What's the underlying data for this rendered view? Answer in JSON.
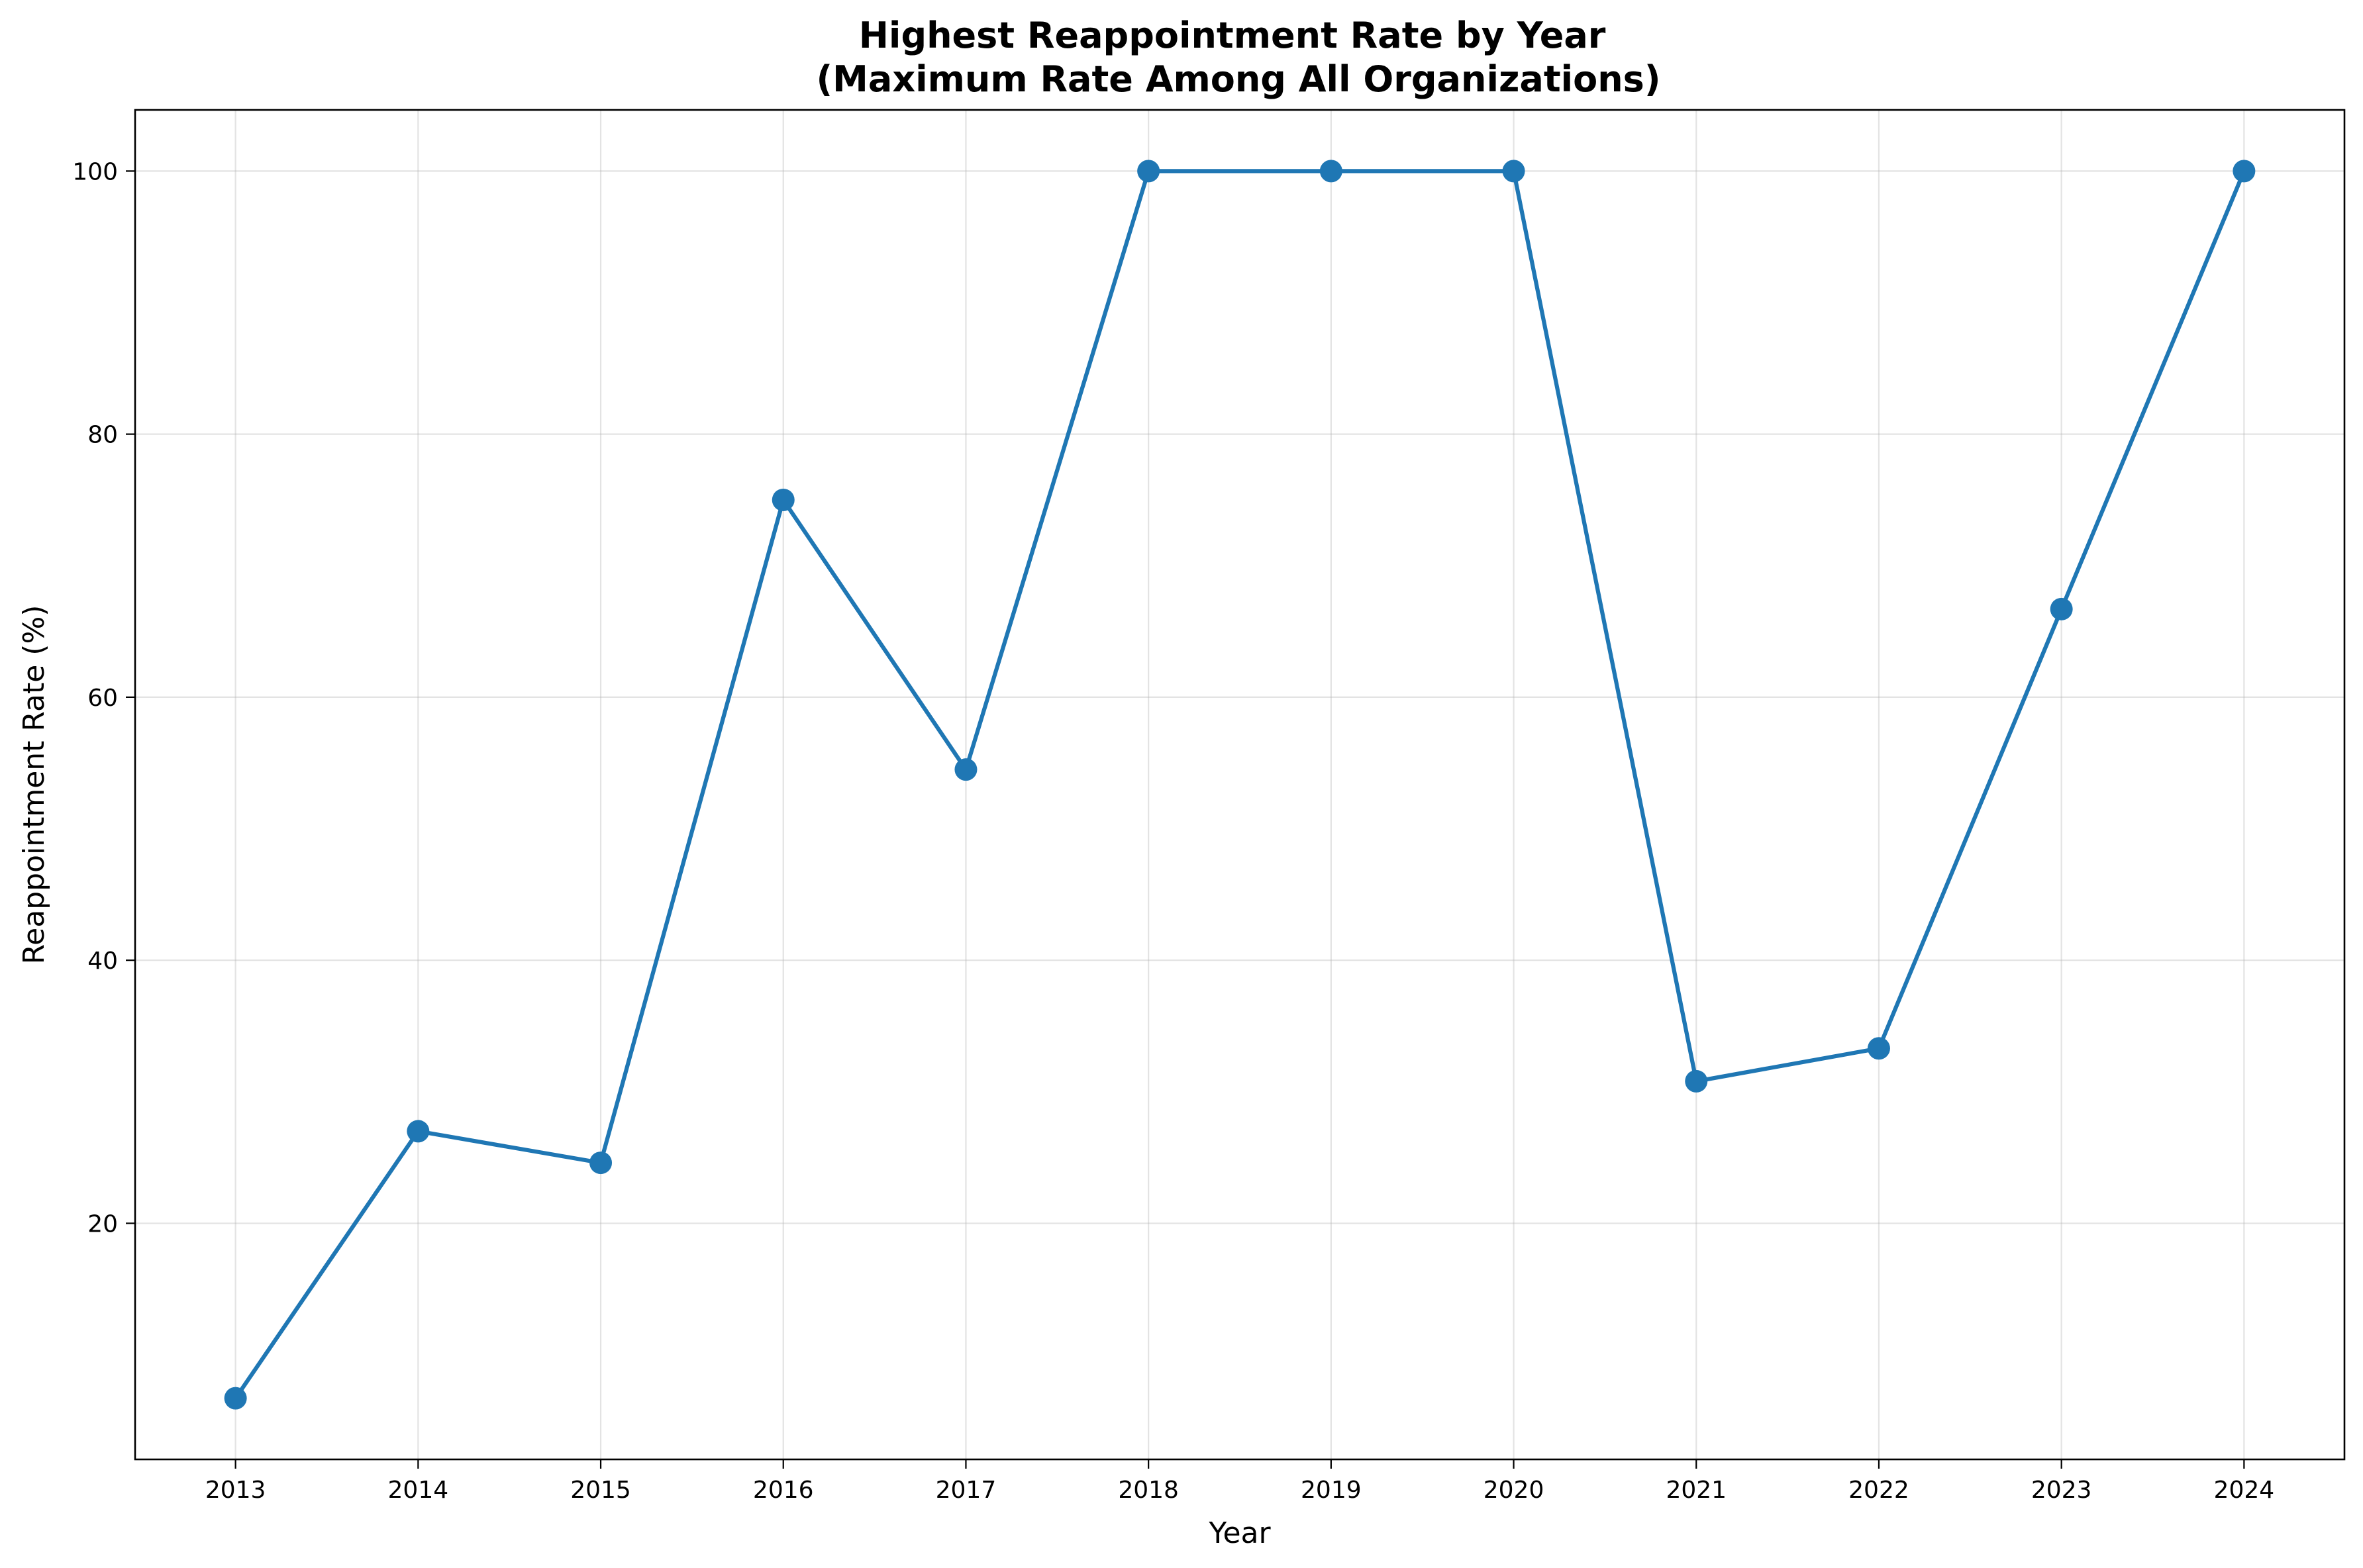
{
  "chart_data": {
    "type": "line",
    "title": "Highest Reappointment Rate by Year\n(Maximum Rate Among All Organizations)",
    "xlabel": "Year",
    "ylabel": "Reappointment Rate (%)",
    "x": [
      2013,
      2014,
      2015,
      2016,
      2017,
      2018,
      2019,
      2020,
      2021,
      2022,
      2023,
      2024
    ],
    "series": [
      {
        "values": [
          6.7,
          27.0,
          24.6,
          75.0,
          54.5,
          100.0,
          100.0,
          100.0,
          30.8,
          33.3,
          66.7,
          100.0
        ],
        "color": "#1f77b4",
        "marker": "circle"
      }
    ],
    "xlim": [
      2012.45,
      2024.55
    ],
    "ylim": [
      2.05,
      104.65
    ],
    "xticks": [
      "2013",
      "2014",
      "2015",
      "2016",
      "2017",
      "2018",
      "2019",
      "2020",
      "2021",
      "2022",
      "2023",
      "2024"
    ],
    "yticks": [
      "20",
      "40",
      "60",
      "80",
      "100"
    ],
    "grid": true,
    "legend": "none"
  }
}
